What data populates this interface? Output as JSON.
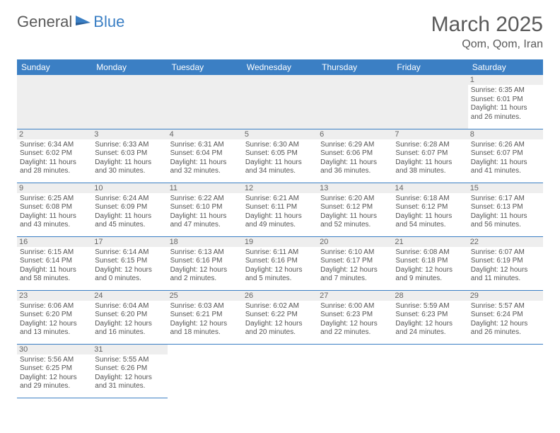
{
  "logo": {
    "general": "General",
    "blue": "Blue"
  },
  "title": "March 2025",
  "location": "Qom, Qom, Iran",
  "colors": {
    "header_bg": "#3b7fc4",
    "header_text": "#ffffff",
    "daynum_bg": "#eeeeee",
    "border": "#3b7fc4"
  },
  "weekdays": [
    "Sunday",
    "Monday",
    "Tuesday",
    "Wednesday",
    "Thursday",
    "Friday",
    "Saturday"
  ],
  "weeks": [
    [
      null,
      null,
      null,
      null,
      null,
      null,
      {
        "n": "1",
        "sr": "6:35 AM",
        "ss": "6:01 PM",
        "dl": "11 hours and 26 minutes."
      }
    ],
    [
      {
        "n": "2",
        "sr": "6:34 AM",
        "ss": "6:02 PM",
        "dl": "11 hours and 28 minutes."
      },
      {
        "n": "3",
        "sr": "6:33 AM",
        "ss": "6:03 PM",
        "dl": "11 hours and 30 minutes."
      },
      {
        "n": "4",
        "sr": "6:31 AM",
        "ss": "6:04 PM",
        "dl": "11 hours and 32 minutes."
      },
      {
        "n": "5",
        "sr": "6:30 AM",
        "ss": "6:05 PM",
        "dl": "11 hours and 34 minutes."
      },
      {
        "n": "6",
        "sr": "6:29 AM",
        "ss": "6:06 PM",
        "dl": "11 hours and 36 minutes."
      },
      {
        "n": "7",
        "sr": "6:28 AM",
        "ss": "6:07 PM",
        "dl": "11 hours and 38 minutes."
      },
      {
        "n": "8",
        "sr": "6:26 AM",
        "ss": "6:07 PM",
        "dl": "11 hours and 41 minutes."
      }
    ],
    [
      {
        "n": "9",
        "sr": "6:25 AM",
        "ss": "6:08 PM",
        "dl": "11 hours and 43 minutes."
      },
      {
        "n": "10",
        "sr": "6:24 AM",
        "ss": "6:09 PM",
        "dl": "11 hours and 45 minutes."
      },
      {
        "n": "11",
        "sr": "6:22 AM",
        "ss": "6:10 PM",
        "dl": "11 hours and 47 minutes."
      },
      {
        "n": "12",
        "sr": "6:21 AM",
        "ss": "6:11 PM",
        "dl": "11 hours and 49 minutes."
      },
      {
        "n": "13",
        "sr": "6:20 AM",
        "ss": "6:12 PM",
        "dl": "11 hours and 52 minutes."
      },
      {
        "n": "14",
        "sr": "6:18 AM",
        "ss": "6:12 PM",
        "dl": "11 hours and 54 minutes."
      },
      {
        "n": "15",
        "sr": "6:17 AM",
        "ss": "6:13 PM",
        "dl": "11 hours and 56 minutes."
      }
    ],
    [
      {
        "n": "16",
        "sr": "6:15 AM",
        "ss": "6:14 PM",
        "dl": "11 hours and 58 minutes."
      },
      {
        "n": "17",
        "sr": "6:14 AM",
        "ss": "6:15 PM",
        "dl": "12 hours and 0 minutes."
      },
      {
        "n": "18",
        "sr": "6:13 AM",
        "ss": "6:16 PM",
        "dl": "12 hours and 2 minutes."
      },
      {
        "n": "19",
        "sr": "6:11 AM",
        "ss": "6:16 PM",
        "dl": "12 hours and 5 minutes."
      },
      {
        "n": "20",
        "sr": "6:10 AM",
        "ss": "6:17 PM",
        "dl": "12 hours and 7 minutes."
      },
      {
        "n": "21",
        "sr": "6:08 AM",
        "ss": "6:18 PM",
        "dl": "12 hours and 9 minutes."
      },
      {
        "n": "22",
        "sr": "6:07 AM",
        "ss": "6:19 PM",
        "dl": "12 hours and 11 minutes."
      }
    ],
    [
      {
        "n": "23",
        "sr": "6:06 AM",
        "ss": "6:20 PM",
        "dl": "12 hours and 13 minutes."
      },
      {
        "n": "24",
        "sr": "6:04 AM",
        "ss": "6:20 PM",
        "dl": "12 hours and 16 minutes."
      },
      {
        "n": "25",
        "sr": "6:03 AM",
        "ss": "6:21 PM",
        "dl": "12 hours and 18 minutes."
      },
      {
        "n": "26",
        "sr": "6:02 AM",
        "ss": "6:22 PM",
        "dl": "12 hours and 20 minutes."
      },
      {
        "n": "27",
        "sr": "6:00 AM",
        "ss": "6:23 PM",
        "dl": "12 hours and 22 minutes."
      },
      {
        "n": "28",
        "sr": "5:59 AM",
        "ss": "6:23 PM",
        "dl": "12 hours and 24 minutes."
      },
      {
        "n": "29",
        "sr": "5:57 AM",
        "ss": "6:24 PM",
        "dl": "12 hours and 26 minutes."
      }
    ],
    [
      {
        "n": "30",
        "sr": "5:56 AM",
        "ss": "6:25 PM",
        "dl": "12 hours and 29 minutes."
      },
      {
        "n": "31",
        "sr": "5:55 AM",
        "ss": "6:26 PM",
        "dl": "12 hours and 31 minutes."
      },
      null,
      null,
      null,
      null,
      null
    ]
  ],
  "labels": {
    "sunrise": "Sunrise:",
    "sunset": "Sunset:",
    "daylight": "Daylight:"
  }
}
